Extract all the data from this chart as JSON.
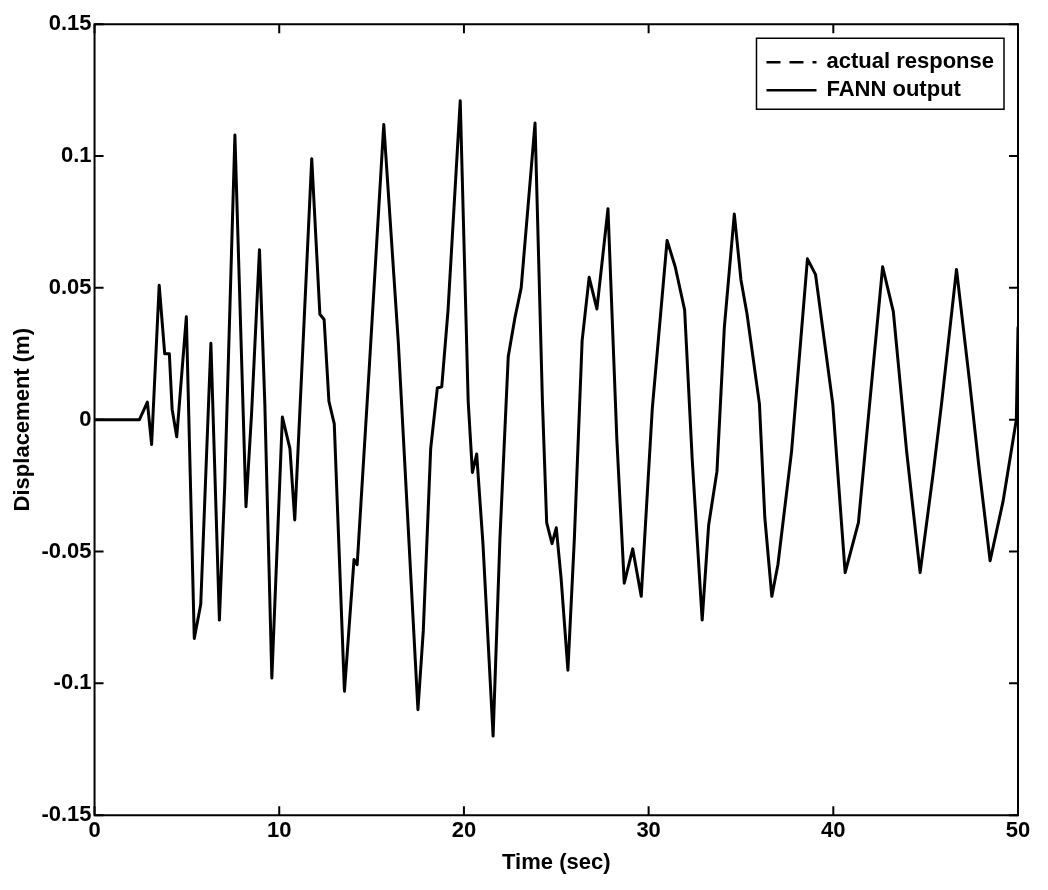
{
  "chart_data": {
    "type": "line",
    "xlabel": "Time (sec)",
    "ylabel": "Displacement (m)",
    "xlim": [
      0,
      50
    ],
    "ylim": [
      -0.15,
      0.15
    ],
    "xticks": [
      0,
      10,
      20,
      30,
      40,
      50
    ],
    "yticks": [
      -0.15,
      -0.1,
      -0.05,
      0,
      0.05,
      0.1,
      0.15
    ],
    "grid": false,
    "legend": "top right",
    "marker": "none",
    "x": [
      0,
      2.43,
      2.86,
      3.09,
      3.5,
      3.8,
      4.05,
      4.2,
      4.45,
      4.65,
      4.97,
      5.4,
      5.75,
      6.3,
      6.76,
      7.05,
      7.6,
      8.2,
      8.5,
      8.93,
      9.22,
      9.6,
      10.17,
      10.58,
      10.84,
      11.76,
      12.2,
      12.43,
      12.69,
      12.98,
      13.53,
      14.05,
      14.22,
      14.86,
      15.66,
      16.45,
      17.51,
      17.8,
      18.2,
      18.56,
      18.8,
      19.14,
      19.8,
      20.23,
      20.46,
      20.69,
      21.03,
      21.58,
      21.95,
      22.4,
      22.76,
      23.1,
      23.85,
      24.25,
      24.48,
      24.77,
      25.0,
      25.26,
      25.63,
      25.98,
      26.4,
      26.78,
      27.2,
      27.8,
      28.28,
      28.68,
      29.14,
      29.6,
      30.2,
      31.0,
      31.44,
      31.95,
      32.36,
      32.9,
      33.25,
      33.7,
      34.1,
      34.64,
      35.0,
      35.33,
      36.0,
      36.29,
      36.67,
      37.0,
      37.74,
      38.6,
      39.04,
      39.97,
      40.64,
      41.36,
      41.94,
      42.67,
      43.25,
      43.97,
      44.7,
      45.42,
      45.86,
      46.67,
      47.39,
      47.88,
      48.49,
      49.19,
      49.91,
      50
    ],
    "series": [
      {
        "name": "actual response",
        "color": "#000000",
        "line_style": "dashed",
        "values": [
          null,
          null,
          null,
          null,
          null,
          null,
          null,
          null,
          null,
          null,
          null,
          null,
          null,
          null,
          null,
          null,
          null,
          null,
          null,
          null,
          null,
          null,
          null,
          null,
          null,
          null,
          null,
          null,
          null,
          null,
          null,
          null,
          null,
          null,
          null,
          null,
          null,
          null,
          null,
          null,
          null,
          null,
          null,
          null,
          null,
          null,
          null,
          null,
          null,
          null,
          null,
          null,
          null,
          null,
          null,
          null,
          null,
          null,
          null,
          null,
          null,
          null,
          null,
          null,
          null,
          null,
          null,
          null,
          null,
          null,
          null,
          null,
          null,
          null,
          null,
          null,
          null,
          null,
          null,
          null,
          null,
          null,
          null,
          null,
          null,
          null,
          null,
          null,
          null,
          null,
          null,
          null,
          null,
          null,
          null,
          null,
          null,
          null,
          null,
          null,
          null,
          null,
          null,
          null
        ]
      },
      {
        "name": "FANN output",
        "color": "#000000",
        "line_style": "solid",
        "values": [
          0,
          0,
          0.0067,
          -0.0094,
          0.051,
          0.025,
          0.025,
          0.004,
          -0.0065,
          0.011,
          0.039,
          -0.083,
          -0.07,
          0.029,
          -0.076,
          -0.025,
          0.108,
          -0.033,
          0.002,
          0.0645,
          0.006,
          -0.098,
          0.001,
          -0.011,
          -0.038,
          0.099,
          0.04,
          0.038,
          0.007,
          -0.0016,
          -0.103,
          -0.053,
          -0.055,
          0.018,
          0.112,
          0.029,
          -0.11,
          -0.08,
          -0.011,
          0.012,
          0.0125,
          0.0416,
          0.121,
          0.007,
          -0.02,
          -0.013,
          -0.047,
          -0.12,
          -0.045,
          0.024,
          0.0386,
          0.05,
          0.1125,
          0.007,
          -0.039,
          -0.047,
          -0.041,
          -0.06,
          -0.095,
          -0.045,
          0.03,
          0.054,
          0.042,
          0.08,
          -0.0075,
          -0.062,
          -0.049,
          -0.067,
          0.0043,
          0.068,
          0.058,
          0.0416,
          -0.015,
          -0.076,
          -0.04,
          -0.0196,
          0.035,
          0.078,
          0.053,
          0.04,
          0.006,
          -0.037,
          -0.067,
          -0.055,
          -0.012,
          0.061,
          0.055,
          0.006,
          -0.058,
          -0.039,
          0.004,
          0.058,
          0.041,
          -0.012,
          -0.058,
          -0.0196,
          0.006,
          0.057,
          0.0137,
          -0.0176,
          -0.0535,
          -0.031,
          0,
          0.035
        ]
      }
    ]
  }
}
